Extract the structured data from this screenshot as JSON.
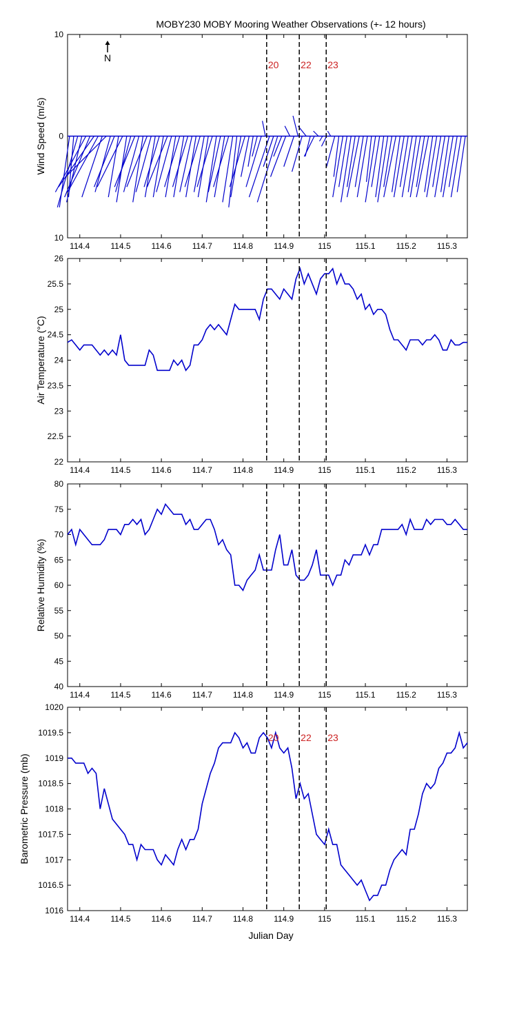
{
  "page_title": "MOBY230 MOBY Mooring Weather Observations (+- 12 hours)",
  "xlabel": "Julian Day",
  "north_label": "N",
  "colors": {
    "series": "#0000cc",
    "marker": "#cc2222",
    "axis": "#000000"
  },
  "markers": [
    {
      "x": 114.858,
      "label": "20"
    },
    {
      "x": 114.938,
      "label": "22"
    },
    {
      "x": 115.004,
      "label": "23"
    }
  ],
  "chart_data": [
    {
      "type": "line",
      "subtype": "wind-vectors",
      "ylabel": "Wind Speed (m/s)",
      "xlim": [
        114.37,
        115.35
      ],
      "ylim": [
        -10,
        10
      ],
      "yticks": [
        "10",
        "0",
        "10"
      ],
      "xticks": [
        "114.4",
        "114.5",
        "114.6",
        "114.7",
        "114.8",
        "114.9",
        "115",
        "115.1",
        "115.2",
        "115.3"
      ],
      "marker_labels_shown": true,
      "x": [
        114.375,
        114.385,
        114.395,
        114.405,
        114.415,
        114.425,
        114.435,
        114.445,
        114.455,
        114.465,
        114.475,
        114.485,
        114.495,
        114.505,
        114.515,
        114.525,
        114.535,
        114.545,
        114.555,
        114.565,
        114.575,
        114.585,
        114.595,
        114.605,
        114.615,
        114.625,
        114.635,
        114.645,
        114.655,
        114.665,
        114.675,
        114.685,
        114.695,
        114.705,
        114.715,
        114.725,
        114.735,
        114.745,
        114.755,
        114.765,
        114.775,
        114.785,
        114.795,
        114.805,
        114.815,
        114.825,
        114.835,
        114.845,
        114.855,
        114.865,
        114.875,
        114.885,
        114.895,
        114.905,
        114.915,
        114.925,
        114.935,
        114.945,
        114.955,
        114.965,
        114.975,
        114.985,
        114.995,
        115.005,
        115.015,
        115.025,
        115.035,
        115.045,
        115.055,
        115.065,
        115.075,
        115.085,
        115.095,
        115.105,
        115.115,
        115.125,
        115.135,
        115.145,
        115.155,
        115.165,
        115.175,
        115.185,
        115.195,
        115.205,
        115.215,
        115.225,
        115.235,
        115.245,
        115.255,
        115.265,
        115.275,
        115.285,
        115.295,
        115.305,
        115.315,
        115.325,
        115.335,
        115.345
      ],
      "u": [
        -1.0,
        -0.5,
        -2.0,
        -1.5,
        -3.0,
        -2.5,
        -3.5,
        -3.0,
        -2.0,
        -4.0,
        -1.5,
        -2.0,
        -1.0,
        -2.5,
        -1.0,
        -1.5,
        -2.0,
        -1.5,
        -1.0,
        -2.0,
        -1.5,
        -1.0,
        -1.5,
        -1.0,
        -2.0,
        -1.5,
        -1.0,
        -1.5,
        -1.0,
        -1.5,
        -1.2,
        -1.0,
        -1.5,
        -1.0,
        -1.0,
        -1.5,
        -1.0,
        -1.2,
        -1.0,
        -1.5,
        -1.0,
        -0.8,
        -1.0,
        -1.5,
        -0.8,
        -0.5,
        -0.5,
        -1.5,
        -0.3,
        -2.0,
        -1.0,
        -2.0,
        -0.8,
        -1.5,
        -0.5,
        -1.0,
        -0.5,
        -1.0,
        -0.8,
        -0.5,
        -1.0,
        -0.5,
        -0.3,
        -0.5,
        -0.3,
        -0.8,
        -0.5,
        -1.0,
        -0.8,
        -1.0,
        -0.8,
        -1.2,
        -0.8,
        -1.0,
        -0.5,
        -1.0,
        -0.8,
        -0.8,
        -1.0,
        -0.8,
        -1.2,
        -0.8,
        -1.0,
        -0.8,
        -1.0,
        -0.8,
        -1.0,
        -0.8,
        -1.2,
        -0.8,
        -1.0,
        -0.8,
        -1.0,
        -0.8,
        -1.0,
        -0.8,
        -1.0,
        -0.8
      ],
      "v": [
        -7.0,
        -6.0,
        -7.0,
        -6.5,
        -5.5,
        -6.0,
        -5.0,
        -5.5,
        -6.0,
        -4.0,
        -5.5,
        -5.0,
        -6.0,
        -5.0,
        -6.5,
        -5.5,
        -5.0,
        -5.5,
        -6.5,
        -5.0,
        -5.5,
        -6.0,
        -5.0,
        -6.0,
        -5.0,
        -5.5,
        -6.0,
        -5.0,
        -6.0,
        -5.0,
        -5.5,
        -6.0,
        -5.0,
        -5.5,
        -6.0,
        -5.0,
        -6.5,
        -5.5,
        -6.0,
        -5.0,
        -6.5,
        -7.0,
        -6.0,
        -5.0,
        -4.0,
        -3.0,
        -2.0,
        -5.0,
        1.5,
        -6.0,
        -3.0,
        -6.5,
        -2.0,
        -4.0,
        1.0,
        -3.0,
        2.0,
        -3.5,
        1.0,
        -2.0,
        -2.0,
        0.5,
        -0.5,
        -1.0,
        0.5,
        -3.0,
        -4.0,
        -6.0,
        -5.0,
        -6.5,
        -5.0,
        -6.0,
        -5.0,
        -6.0,
        -4.5,
        -6.5,
        -5.0,
        -6.0,
        -6.5,
        -5.0,
        -6.0,
        -5.5,
        -6.0,
        -5.0,
        -6.0,
        -5.5,
        -6.0,
        -5.0,
        -6.0,
        -5.5,
        -6.0,
        -5.0,
        -6.0,
        -5.5,
        -6.0,
        -5.0,
        -6.0,
        -5.5
      ]
    },
    {
      "type": "line",
      "ylabel": "Air Temperature (°C)",
      "xlim": [
        114.37,
        115.35
      ],
      "ylim": [
        22,
        26
      ],
      "yticks": [
        "26",
        "25.5",
        "25",
        "24.5",
        "24",
        "23.5",
        "23",
        "22.5",
        "22"
      ],
      "xticks": [
        "114.4",
        "114.5",
        "114.6",
        "114.7",
        "114.8",
        "114.9",
        "115",
        "115.1",
        "115.2",
        "115.3"
      ],
      "marker_labels_shown": false,
      "x": [
        114.37,
        114.38,
        114.39,
        114.4,
        114.41,
        114.42,
        114.43,
        114.44,
        114.45,
        114.46,
        114.47,
        114.48,
        114.49,
        114.5,
        114.51,
        114.52,
        114.53,
        114.54,
        114.55,
        114.56,
        114.57,
        114.58,
        114.59,
        114.6,
        114.61,
        114.62,
        114.63,
        114.64,
        114.65,
        114.66,
        114.67,
        114.68,
        114.69,
        114.7,
        114.71,
        114.72,
        114.73,
        114.74,
        114.75,
        114.76,
        114.77,
        114.78,
        114.79,
        114.8,
        114.81,
        114.82,
        114.83,
        114.84,
        114.85,
        114.86,
        114.87,
        114.88,
        114.89,
        114.9,
        114.91,
        114.92,
        114.93,
        114.94,
        114.95,
        114.96,
        114.97,
        114.98,
        114.99,
        115.0,
        115.01,
        115.02,
        115.03,
        115.04,
        115.05,
        115.06,
        115.07,
        115.08,
        115.09,
        115.1,
        115.11,
        115.12,
        115.13,
        115.14,
        115.15,
        115.16,
        115.17,
        115.18,
        115.19,
        115.2,
        115.21,
        115.22,
        115.23,
        115.24,
        115.25,
        115.26,
        115.27,
        115.28,
        115.29,
        115.3,
        115.31,
        115.32,
        115.33,
        115.34,
        115.35
      ],
      "y": [
        24.35,
        24.4,
        24.3,
        24.2,
        24.3,
        24.3,
        24.3,
        24.2,
        24.1,
        24.2,
        24.1,
        24.2,
        24.1,
        24.5,
        24.0,
        23.9,
        23.9,
        23.9,
        23.9,
        23.9,
        24.2,
        24.1,
        23.8,
        23.8,
        23.8,
        23.8,
        24.0,
        23.9,
        24.0,
        23.8,
        23.9,
        24.3,
        24.3,
        24.4,
        24.6,
        24.7,
        24.6,
        24.7,
        24.6,
        24.5,
        24.8,
        25.1,
        25.0,
        25.0,
        25.0,
        25.0,
        25.0,
        24.8,
        25.2,
        25.4,
        25.4,
        25.3,
        25.2,
        25.4,
        25.3,
        25.2,
        25.6,
        25.8,
        25.5,
        25.7,
        25.5,
        25.3,
        25.6,
        25.7,
        25.7,
        25.8,
        25.5,
        25.7,
        25.5,
        25.5,
        25.4,
        25.2,
        25.3,
        25.0,
        25.1,
        24.9,
        25.0,
        25.0,
        24.9,
        24.6,
        24.4,
        24.4,
        24.3,
        24.2,
        24.4,
        24.4,
        24.4,
        24.3,
        24.4,
        24.4,
        24.5,
        24.4,
        24.2,
        24.2,
        24.4,
        24.3,
        24.3,
        24.35,
        24.35
      ]
    },
    {
      "type": "line",
      "ylabel": "Relative Humidity (%)",
      "xlim": [
        114.37,
        115.35
      ],
      "ylim": [
        40,
        80
      ],
      "yticks": [
        "80",
        "75",
        "70",
        "65",
        "60",
        "55",
        "50",
        "45",
        "40"
      ],
      "xticks": [
        "114.4",
        "114.5",
        "114.6",
        "114.7",
        "114.8",
        "114.9",
        "115",
        "115.1",
        "115.2",
        "115.3"
      ],
      "marker_labels_shown": false,
      "x": [
        114.37,
        114.38,
        114.39,
        114.4,
        114.41,
        114.42,
        114.43,
        114.44,
        114.45,
        114.46,
        114.47,
        114.48,
        114.49,
        114.5,
        114.51,
        114.52,
        114.53,
        114.54,
        114.55,
        114.56,
        114.57,
        114.58,
        114.59,
        114.6,
        114.61,
        114.62,
        114.63,
        114.64,
        114.65,
        114.66,
        114.67,
        114.68,
        114.69,
        114.7,
        114.71,
        114.72,
        114.73,
        114.74,
        114.75,
        114.76,
        114.77,
        114.78,
        114.79,
        114.8,
        114.81,
        114.82,
        114.83,
        114.84,
        114.85,
        114.86,
        114.87,
        114.88,
        114.89,
        114.9,
        114.91,
        114.92,
        114.93,
        114.94,
        114.95,
        114.96,
        114.97,
        114.98,
        114.99,
        115.0,
        115.01,
        115.02,
        115.03,
        115.04,
        115.05,
        115.06,
        115.07,
        115.08,
        115.09,
        115.1,
        115.11,
        115.12,
        115.13,
        115.14,
        115.15,
        115.16,
        115.17,
        115.18,
        115.19,
        115.2,
        115.21,
        115.22,
        115.23,
        115.24,
        115.25,
        115.26,
        115.27,
        115.28,
        115.29,
        115.3,
        115.31,
        115.32,
        115.33,
        115.34,
        115.35
      ],
      "y": [
        70,
        71,
        68,
        71,
        70,
        69,
        68,
        68,
        68,
        69,
        71,
        71,
        71,
        70,
        72,
        72,
        73,
        72,
        73,
        70,
        71,
        73,
        75,
        74,
        76,
        75,
        74,
        74,
        74,
        72,
        73,
        71,
        71,
        72,
        73,
        73,
        71,
        68,
        69,
        67,
        66,
        60,
        60,
        59,
        61,
        62,
        63,
        66,
        63,
        63,
        63,
        67,
        70,
        64,
        64,
        67,
        62,
        61,
        61,
        62,
        64,
        67,
        62,
        62,
        62,
        60,
        62,
        62,
        65,
        64,
        66,
        66,
        66,
        68,
        66,
        68,
        68,
        71,
        71,
        71,
        71,
        71,
        72,
        70,
        73,
        71,
        71,
        71,
        73,
        72,
        73,
        73,
        73,
        72,
        72,
        73,
        72,
        71,
        71
      ]
    },
    {
      "type": "line",
      "ylabel": "Barometric Pressure (mb)",
      "xlim": [
        114.37,
        115.35
      ],
      "ylim": [
        1016,
        1020
      ],
      "yticks": [
        "1020",
        "1019.5",
        "1019",
        "1018.5",
        "1018",
        "1017.5",
        "1017",
        "1016.5",
        "1016"
      ],
      "xticks": [
        "114.4",
        "114.5",
        "114.6",
        "114.7",
        "114.8",
        "114.9",
        "115",
        "115.1",
        "115.2",
        "115.3"
      ],
      "marker_labels_shown": true,
      "x": [
        114.37,
        114.38,
        114.39,
        114.4,
        114.41,
        114.42,
        114.43,
        114.44,
        114.45,
        114.46,
        114.47,
        114.48,
        114.49,
        114.5,
        114.51,
        114.52,
        114.53,
        114.54,
        114.55,
        114.56,
        114.57,
        114.58,
        114.59,
        114.6,
        114.61,
        114.62,
        114.63,
        114.64,
        114.65,
        114.66,
        114.67,
        114.68,
        114.69,
        114.7,
        114.71,
        114.72,
        114.73,
        114.74,
        114.75,
        114.76,
        114.77,
        114.78,
        114.79,
        114.8,
        114.81,
        114.82,
        114.83,
        114.84,
        114.85,
        114.86,
        114.87,
        114.88,
        114.89,
        114.9,
        114.91,
        114.92,
        114.93,
        114.94,
        114.95,
        114.96,
        114.97,
        114.98,
        114.99,
        115.0,
        115.01,
        115.02,
        115.03,
        115.04,
        115.05,
        115.06,
        115.07,
        115.08,
        115.09,
        115.1,
        115.11,
        115.12,
        115.13,
        115.14,
        115.15,
        115.16,
        115.17,
        115.18,
        115.19,
        115.2,
        115.21,
        115.22,
        115.23,
        115.24,
        115.25,
        115.26,
        115.27,
        115.28,
        115.29,
        115.3,
        115.31,
        115.32,
        115.33,
        115.34,
        115.35
      ],
      "y": [
        1019.0,
        1019.0,
        1018.9,
        1018.9,
        1018.9,
        1018.7,
        1018.8,
        1018.7,
        1018.0,
        1018.4,
        1018.1,
        1017.8,
        1017.7,
        1017.6,
        1017.5,
        1017.3,
        1017.3,
        1017.0,
        1017.3,
        1017.2,
        1017.2,
        1017.2,
        1017.0,
        1016.9,
        1017.1,
        1017.0,
        1016.9,
        1017.2,
        1017.4,
        1017.2,
        1017.4,
        1017.4,
        1017.6,
        1018.1,
        1018.4,
        1018.7,
        1018.9,
        1019.2,
        1019.3,
        1019.3,
        1019.3,
        1019.5,
        1019.4,
        1019.2,
        1019.3,
        1019.1,
        1019.1,
        1019.4,
        1019.5,
        1019.4,
        1019.2,
        1019.5,
        1019.2,
        1019.1,
        1019.2,
        1018.8,
        1018.2,
        1018.5,
        1018.2,
        1018.3,
        1017.9,
        1017.5,
        1017.4,
        1017.3,
        1017.6,
        1017.3,
        1017.3,
        1016.9,
        1016.8,
        1016.7,
        1016.6,
        1016.5,
        1016.6,
        1016.4,
        1016.2,
        1016.3,
        1016.3,
        1016.5,
        1016.5,
        1016.8,
        1017.0,
        1017.1,
        1017.2,
        1017.1,
        1017.6,
        1017.6,
        1017.9,
        1018.3,
        1018.5,
        1018.4,
        1018.5,
        1018.8,
        1018.9,
        1019.1,
        1019.1,
        1019.2,
        1019.5,
        1019.2,
        1019.3
      ]
    }
  ]
}
